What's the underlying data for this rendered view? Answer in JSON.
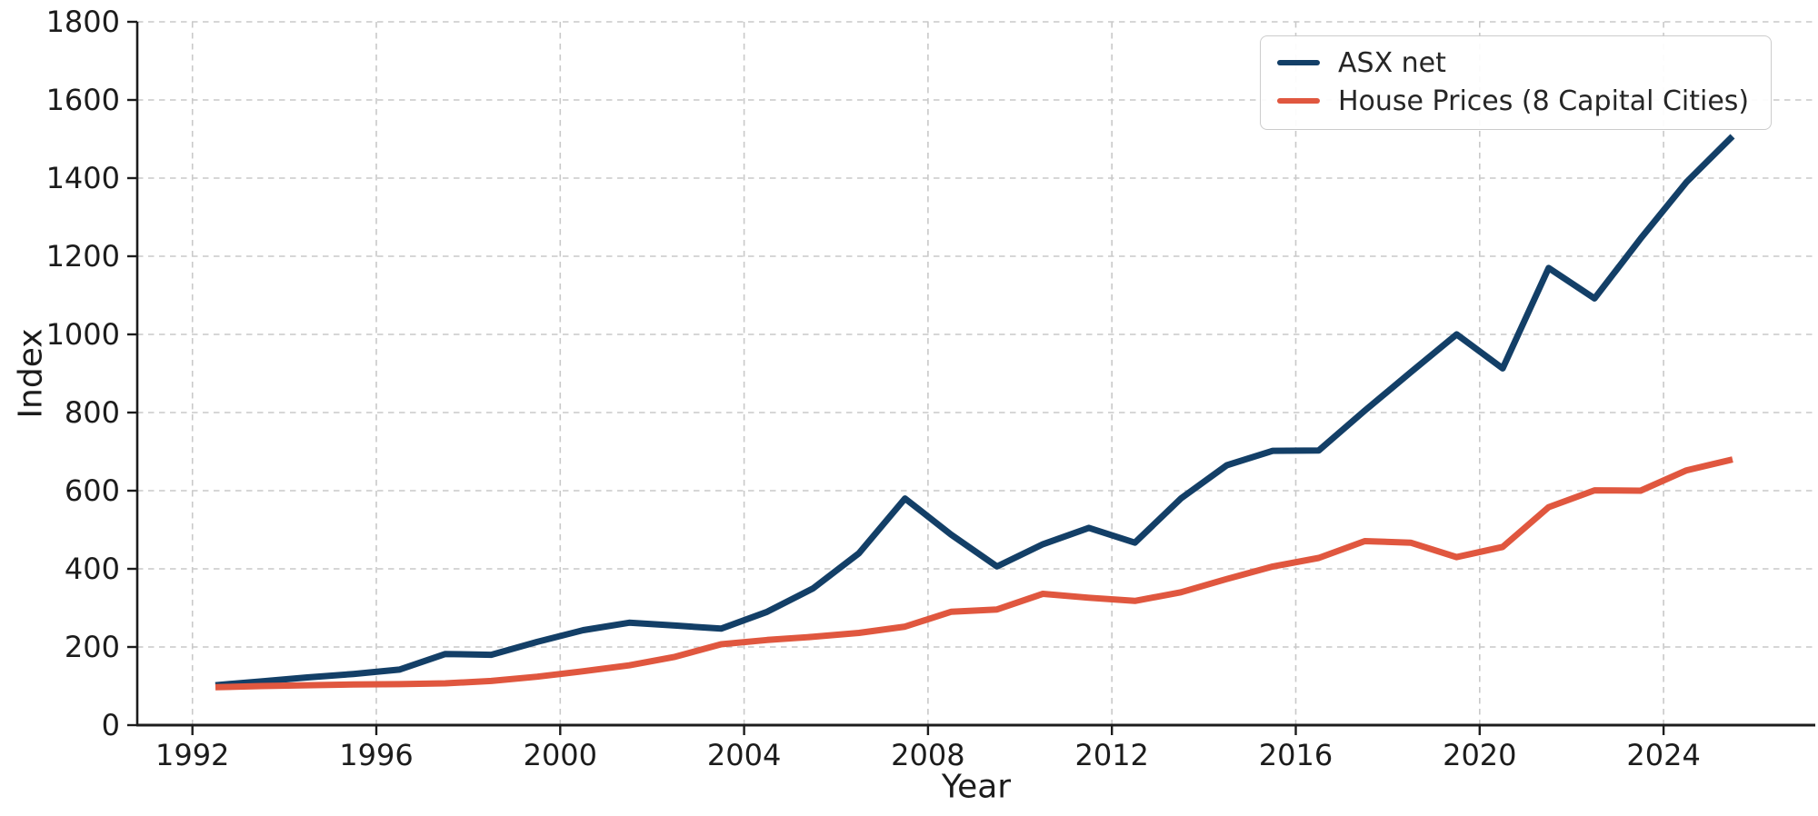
{
  "chart_data": {
    "type": "line",
    "title": "",
    "xlabel": "Year",
    "ylabel": "Index",
    "grid": true,
    "grid_style": "dashed",
    "legend_position": "upper right",
    "xlim": [
      1990.8,
      2027.3
    ],
    "ylim": [
      0,
      1800
    ],
    "xticks": [
      1992,
      1996,
      2000,
      2004,
      2008,
      2012,
      2016,
      2020,
      2024
    ],
    "yticks": [
      0,
      200,
      400,
      600,
      800,
      1000,
      1200,
      1400,
      1600,
      1800
    ],
    "x": [
      1992.5,
      1993.5,
      1994.5,
      1995.5,
      1996.5,
      1997.5,
      1998.5,
      1999.5,
      2000.5,
      2001.5,
      2002.5,
      2003.5,
      2004.5,
      2005.5,
      2006.5,
      2007.5,
      2008.5,
      2009.5,
      2010.5,
      2011.5,
      2012.5,
      2013.5,
      2014.5,
      2015.5,
      2016.5,
      2017.5,
      2018.5,
      2019.5,
      2020.5,
      2021.5,
      2022.5,
      2023.5,
      2024.5,
      2025.5
    ],
    "series": [
      {
        "name": "ASX net",
        "color": "#133f67",
        "values": [
          102,
          112,
          122,
          131,
          142,
          182,
          180,
          213,
          243,
          262,
          255,
          247,
          290,
          350,
          440,
          580,
          488,
          406,
          463,
          505,
          467,
          580,
          665,
          702,
          703,
          805,
          903,
          1000,
          913,
          1170,
          1092,
          1245,
          1390,
          1507
        ]
      },
      {
        "name": "House Prices (8 Capital Cities)",
        "color": "#e0573f",
        "values": [
          97,
          100,
          102,
          104,
          105,
          107,
          113,
          124,
          138,
          153,
          175,
          207,
          218,
          226,
          236,
          252,
          290,
          296,
          336,
          326,
          318,
          340,
          374,
          406,
          428,
          471,
          467,
          430,
          456,
          558,
          601,
          600,
          652,
          680
        ]
      }
    ]
  },
  "axes": {
    "xlabel": "Year",
    "ylabel": "Index"
  },
  "legend": {
    "items": [
      "ASX net",
      "House Prices (8 Capital Cities)"
    ]
  },
  "colors": {
    "background": "#ffffff",
    "grid": "#c9c9c9",
    "spine": "#1c1c1c",
    "tick_text": "#1c1c1c",
    "legend_border": "#cccccc"
  }
}
